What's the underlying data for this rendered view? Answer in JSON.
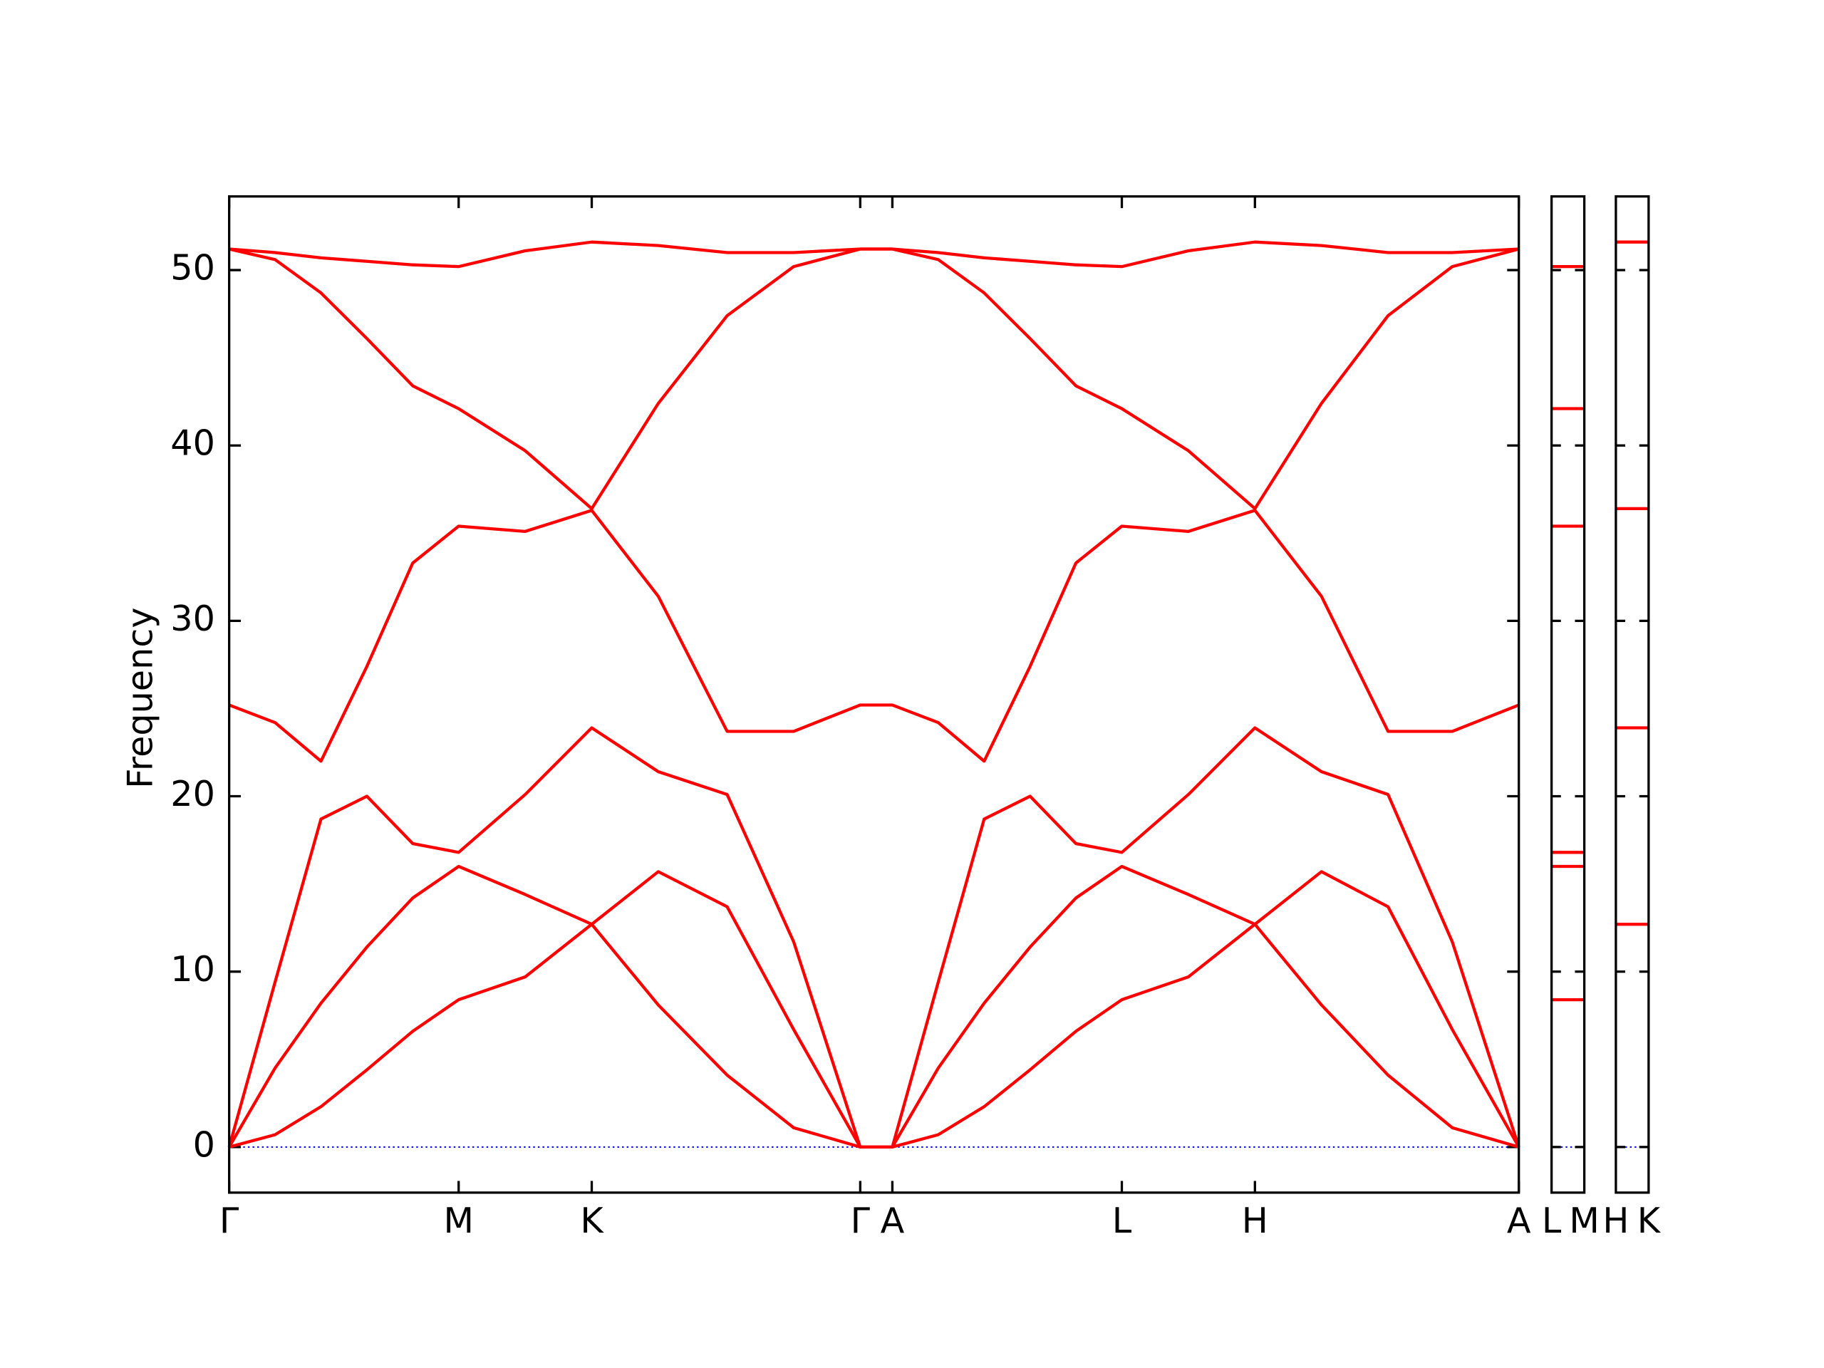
{
  "chart_data": [
    {
      "type": "line",
      "ylabel": "Frequency",
      "color": "#ff0000",
      "zero_line_color": "#0000ff",
      "x": [
        0,
        0.2,
        0.4,
        0.6,
        0.8,
        1,
        1.29,
        1.58,
        1.87,
        2.17,
        2.46,
        2.75,
        2.89,
        3.09,
        3.29,
        3.49,
        3.69,
        3.89,
        4.18,
        4.47,
        4.76,
        5.05,
        5.33,
        5.62
      ],
      "series": [
        {
          "color": "#ff0000",
          "values": [
            0,
            0.7,
            2.3,
            4.4,
            6.6,
            8.4,
            9.7,
            12.7,
            8.1,
            4.1,
            1.1,
            0,
            0,
            0.7,
            2.3,
            4.4,
            6.6,
            8.4,
            9.7,
            12.7,
            8.1,
            4.1,
            1.1,
            0
          ]
        },
        {
          "color": "#ff0000",
          "values": [
            0,
            4.5,
            8.2,
            11.4,
            14.2,
            16.0,
            14.4,
            12.7,
            15.7,
            13.7,
            6.7,
            0,
            0,
            4.5,
            8.2,
            11.4,
            14.2,
            16.0,
            14.4,
            12.7,
            15.7,
            13.7,
            6.7,
            0
          ]
        },
        {
          "color": "#ff0000",
          "values": [
            0,
            9.4,
            18.7,
            20.0,
            17.3,
            16.8,
            20.1,
            23.9,
            21.4,
            20.1,
            11.7,
            0,
            0,
            9.4,
            18.7,
            20.0,
            17.3,
            16.8,
            20.1,
            23.9,
            21.4,
            20.1,
            11.7,
            0
          ]
        },
        {
          "color": "#ff0000",
          "values": [
            25.2,
            24.2,
            22.0,
            27.4,
            33.3,
            35.4,
            35.1,
            36.3,
            31.4,
            23.7,
            23.7,
            25.2,
            25.2,
            24.2,
            22.0,
            27.4,
            33.3,
            35.4,
            35.1,
            36.3,
            31.4,
            23.7,
            23.7,
            25.2
          ]
        },
        {
          "color": "#ff0000",
          "values": [
            51.2,
            50.6,
            48.7,
            46.1,
            43.4,
            42.1,
            39.7,
            36.4,
            42.4,
            47.4,
            50.2,
            51.2,
            51.2,
            50.6,
            48.7,
            46.1,
            43.4,
            42.1,
            39.7,
            36.4,
            42.4,
            47.4,
            50.2,
            51.2
          ]
        },
        {
          "color": "#ff0000",
          "values": [
            51.2,
            51.0,
            50.7,
            50.5,
            50.3,
            50.2,
            51.1,
            51.6,
            51.4,
            51.0,
            51.0,
            51.2,
            51.2,
            51.0,
            50.7,
            50.5,
            50.3,
            50.2,
            51.1,
            51.6,
            51.4,
            51.0,
            51.0,
            51.2
          ]
        }
      ],
      "xlim": [
        0,
        5.62
      ],
      "xticks": [
        {
          "value": 0,
          "label": "Γ"
        },
        {
          "value": 1,
          "label": "M"
        },
        {
          "value": 1.58,
          "label": "K"
        },
        {
          "value": 2.75,
          "label": "Γ"
        },
        {
          "value": 2.89,
          "label": "A"
        },
        {
          "value": 3.89,
          "label": "L"
        },
        {
          "value": 4.47,
          "label": "H"
        },
        {
          "value": 5.62,
          "label": "A"
        }
      ],
      "ylim": [
        -2.6,
        54.2
      ],
      "yticks": [
        0,
        10,
        20,
        30,
        40,
        50
      ]
    },
    {
      "type": "level",
      "color": "#ff0000",
      "zero_line_color": "#0000ff",
      "values": [
        50.2,
        42.1,
        35.4,
        16.8,
        16.0,
        8.4
      ],
      "xlim": [
        0,
        1
      ],
      "xticks": [
        {
          "value": 0,
          "label": "L"
        },
        {
          "value": 1,
          "label": "M"
        }
      ],
      "ylim": [
        -2.6,
        54.2
      ],
      "yticks": [
        0,
        10,
        20,
        30,
        40,
        50
      ]
    },
    {
      "type": "level",
      "color": "#ff0000",
      "zero_line_color": "#0000ff",
      "values": [
        51.6,
        36.4,
        23.9,
        12.7
      ],
      "xlim": [
        0,
        1
      ],
      "xticks": [
        {
          "value": 0,
          "label": "H"
        },
        {
          "value": 1,
          "label": "K"
        }
      ],
      "ylim": [
        -2.6,
        54.2
      ],
      "yticks": [
        0,
        10,
        20,
        30,
        40,
        50
      ]
    }
  ]
}
